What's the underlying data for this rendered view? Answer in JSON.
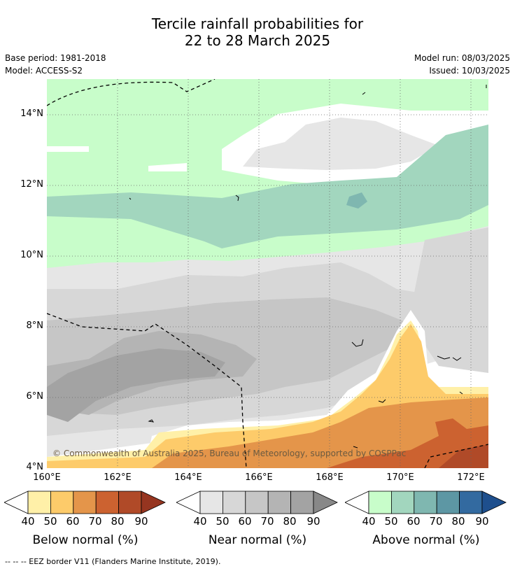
{
  "title_line1": "Tercile rainfall probabilities for",
  "title_line2": "22 to 28 March 2025",
  "base_period": "Base period: 1981-2018",
  "model": "Model: ACCESS-S2",
  "model_run": "Model run: 08/03/2025",
  "issued": "Issued: 10/03/2025",
  "lat_labels": [
    "14°N",
    "12°N",
    "10°N",
    "8°N",
    "6°N",
    "4°N"
  ],
  "lon_labels": [
    "160°E",
    "162°E",
    "164°E",
    "166°E",
    "168°E",
    "170°E",
    "172°E"
  ],
  "copyright": "© Commonwealth of Australia 2025, Bureau of Meteorology, supported by COSPPac",
  "colorbars": [
    {
      "title": "Below normal (%)",
      "ticks": [
        "40",
        "50",
        "60",
        "70",
        "80",
        "90"
      ],
      "colors": [
        "#fff0a8",
        "#fdcb6a",
        "#e4954a",
        "#cc6230",
        "#b04a28",
        "#963520"
      ]
    },
    {
      "title": "Near normal (%)",
      "ticks": [
        "40",
        "50",
        "60",
        "70",
        "80",
        "90"
      ],
      "colors": [
        "#e6e6e6",
        "#d7d7d7",
        "#c6c6c6",
        "#b4b4b4",
        "#a3a3a3",
        "#888888"
      ]
    },
    {
      "title": "Above normal (%)",
      "ticks": [
        "40",
        "50",
        "60",
        "70",
        "80",
        "90"
      ],
      "colors": [
        "#c8fdca",
        "#a2d6be",
        "#7fb7b0",
        "#5d97a4",
        "#336aa0",
        "#1e4f8d"
      ]
    }
  ],
  "footnote": "-- -- -- EEZ border V11 (Flanders Marine Institute, 2019)."
}
